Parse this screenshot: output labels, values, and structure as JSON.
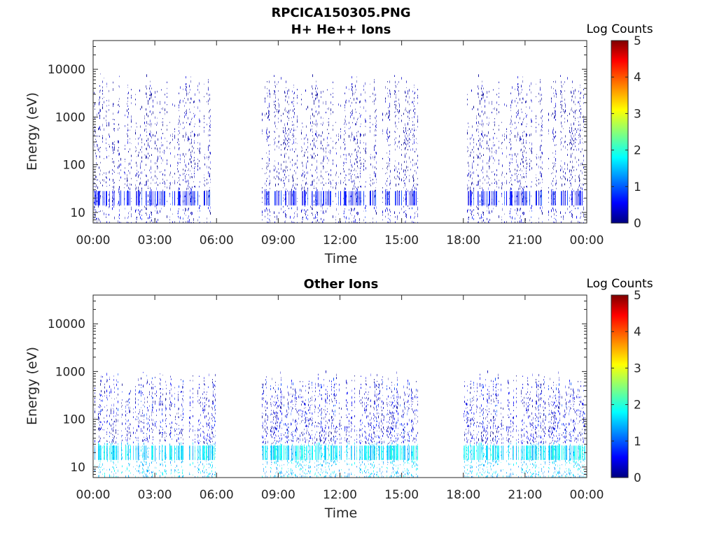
{
  "figure": {
    "title": "RPCICA150305.PNG"
  },
  "colors": {
    "colormap": "jet",
    "low": "#00007f",
    "high": "#7f0000",
    "axis": "#262626",
    "background": "#ffffff"
  },
  "chart_data": [
    {
      "type": "heatmap",
      "title": "H+ He++ Ions",
      "xlabel": "Time",
      "ylabel": "Energy (eV)",
      "yscale": "log",
      "ylim": [
        6,
        40000
      ],
      "xlim_hours": [
        0,
        24
      ],
      "x_ticks": [
        "00:00",
        "03:00",
        "06:00",
        "09:00",
        "12:00",
        "15:00",
        "18:00",
        "21:00",
        "00:00"
      ],
      "y_ticks": [
        "10",
        "100",
        "1000",
        "10000"
      ],
      "colorbar": {
        "label": "Log Counts",
        "range": [
          0,
          5
        ],
        "ticks": [
          "0",
          "1",
          "2",
          "3",
          "4",
          "5"
        ]
      },
      "data_gaps_hours": [
        [
          6.0,
          8.2
        ],
        [
          15.8,
          18.0
        ]
      ],
      "data_intervals_hours": [
        [
          0.0,
          6.0
        ],
        [
          8.2,
          15.8
        ],
        [
          18.0,
          23.95
        ]
      ],
      "typical_log_counts": [
        0,
        1
      ],
      "grid": false,
      "legend": "none"
    },
    {
      "type": "heatmap",
      "title": "Other Ions",
      "xlabel": "Time",
      "ylabel": "Energy (eV)",
      "yscale": "log",
      "ylim": [
        6,
        40000
      ],
      "xlim_hours": [
        0,
        24
      ],
      "x_ticks": [
        "00:00",
        "03:00",
        "06:00",
        "09:00",
        "12:00",
        "15:00",
        "18:00",
        "21:00",
        "00:00"
      ],
      "y_ticks": [
        "10",
        "100",
        "1000",
        "10000"
      ],
      "colorbar": {
        "label": "Log Counts",
        "range": [
          0,
          5
        ],
        "ticks": [
          "0",
          "1",
          "2",
          "3",
          "4",
          "5"
        ]
      },
      "data_gaps_hours": [
        [
          6.0,
          8.2
        ],
        [
          15.8,
          18.0
        ]
      ],
      "data_intervals_hours": [
        [
          0.0,
          6.0
        ],
        [
          8.2,
          15.8
        ],
        [
          18.0,
          23.95
        ]
      ],
      "typical_log_counts": [
        0,
        2
      ],
      "grid": false,
      "legend": "none"
    }
  ]
}
